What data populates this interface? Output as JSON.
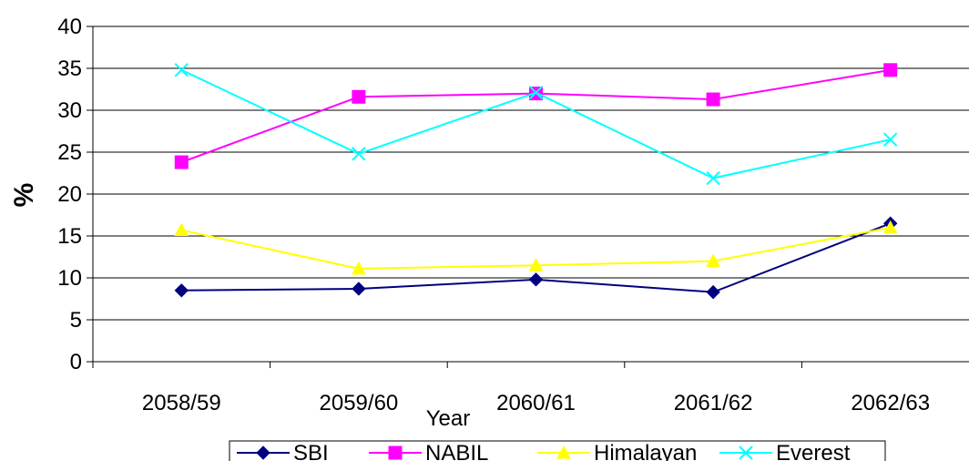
{
  "chart_data": {
    "type": "line",
    "xlabel": "Year",
    "ylabel": "%",
    "categories": [
      "2058/59",
      "2059/60",
      "2060/61",
      "2061/62",
      "2062/63"
    ],
    "ylim": [
      0,
      40
    ],
    "yticks": [
      0,
      5,
      10,
      15,
      20,
      25,
      30,
      35,
      40
    ],
    "grid": true,
    "legend_position": "bottom",
    "series": [
      {
        "name": "SBI",
        "color": "#000080",
        "marker": "diamond",
        "values": [
          8.5,
          8.7,
          9.8,
          8.3,
          16.5
        ]
      },
      {
        "name": "NABIL",
        "color": "#FF00FF",
        "marker": "square",
        "values": [
          23.8,
          31.6,
          32.0,
          31.3,
          34.8
        ]
      },
      {
        "name": "Himalayan",
        "color": "#FFFF00",
        "marker": "triangle",
        "values": [
          15.7,
          11.1,
          11.5,
          12.0,
          16.0
        ]
      },
      {
        "name": "Everest",
        "color": "#00FFFF",
        "marker": "x",
        "values": [
          34.8,
          24.8,
          32.1,
          21.9,
          26.5
        ]
      }
    ]
  }
}
